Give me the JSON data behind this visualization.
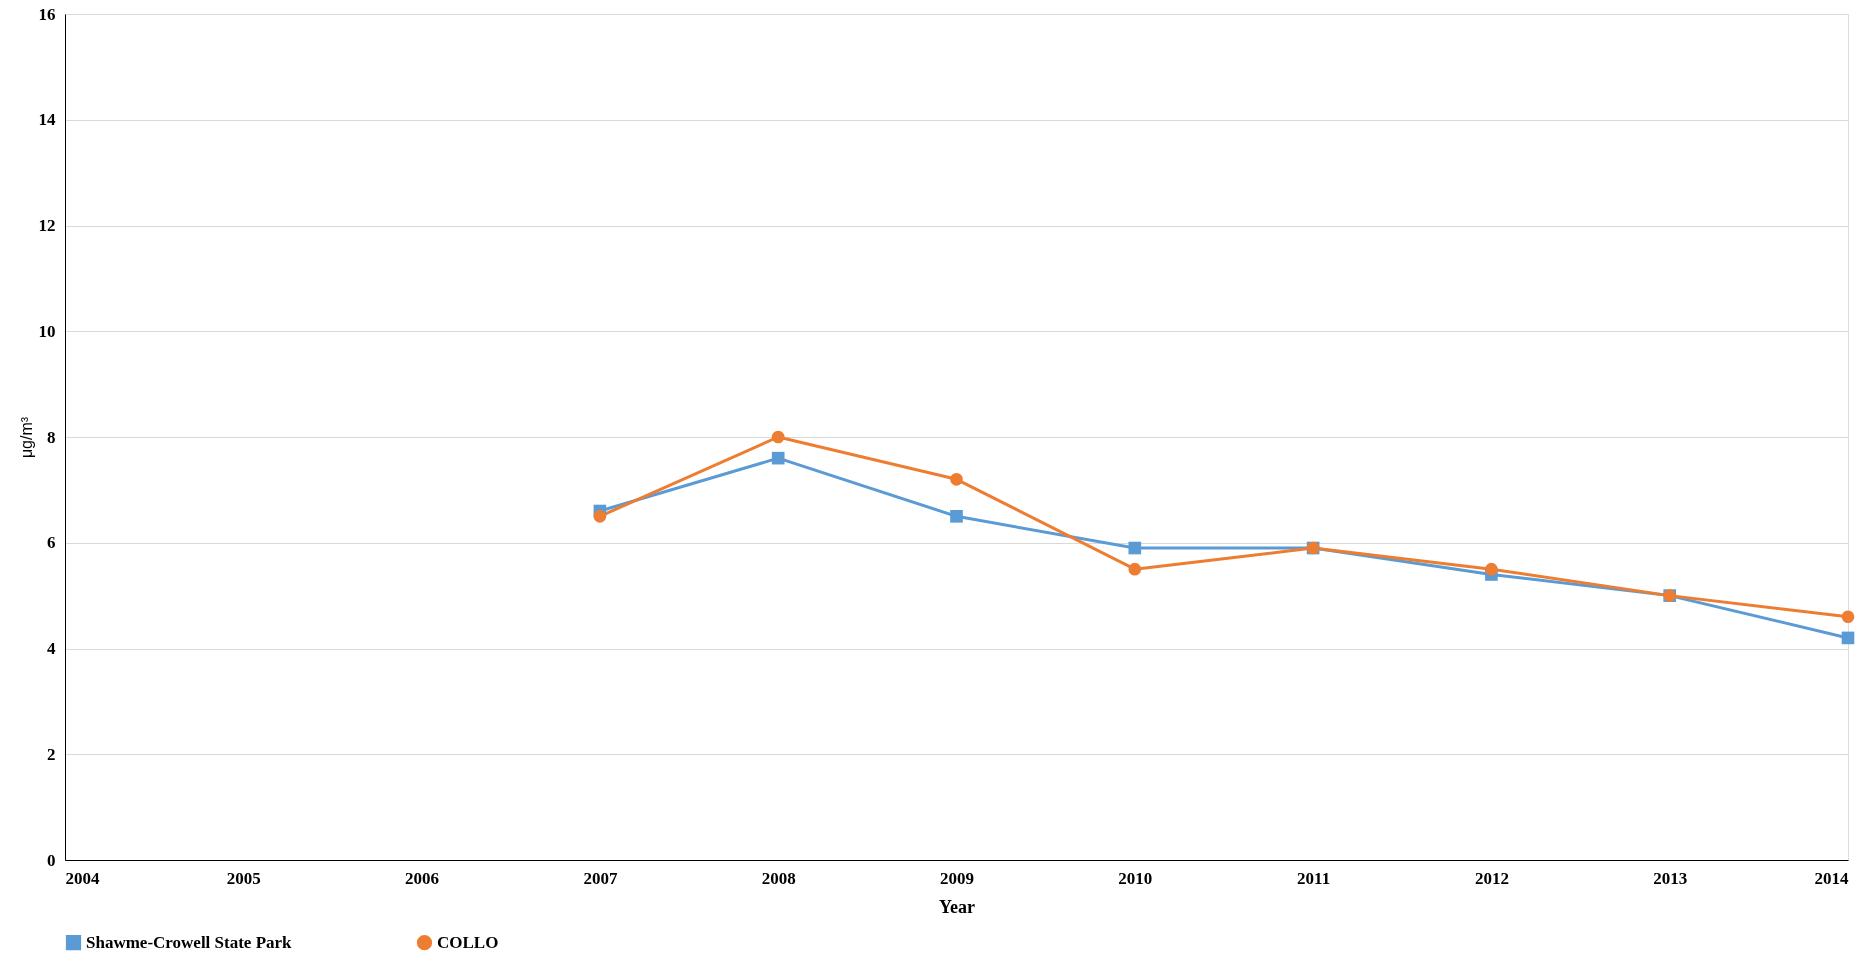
{
  "chart_data": {
    "type": "line",
    "xlabel": "Year",
    "ylabel": "μg/m³",
    "x": [
      2007,
      2008,
      2009,
      2010,
      2011,
      2012,
      2013,
      2014
    ],
    "series": [
      {
        "name": "Shawme-Crowell State Park",
        "color": "#5b9bd5",
        "marker": "square",
        "values": [
          6.6,
          7.6,
          6.5,
          5.9,
          5.9,
          5.4,
          5.0,
          4.2
        ]
      },
      {
        "name": "COLLO",
        "color": "#ed7d31",
        "marker": "circle",
        "values": [
          6.5,
          8.0,
          7.2,
          5.5,
          5.9,
          5.5,
          5.0,
          4.6
        ]
      }
    ],
    "xlim": [
      2004,
      2014
    ],
    "xticks": [
      2004,
      2005,
      2006,
      2007,
      2008,
      2009,
      2010,
      2011,
      2012,
      2013,
      2014
    ],
    "ylim": [
      0,
      16
    ],
    "yticks": [
      0,
      2,
      4,
      6,
      8,
      10,
      12,
      14,
      16
    ],
    "grid": "y",
    "legend": "bottom",
    "line_style": "solid"
  }
}
